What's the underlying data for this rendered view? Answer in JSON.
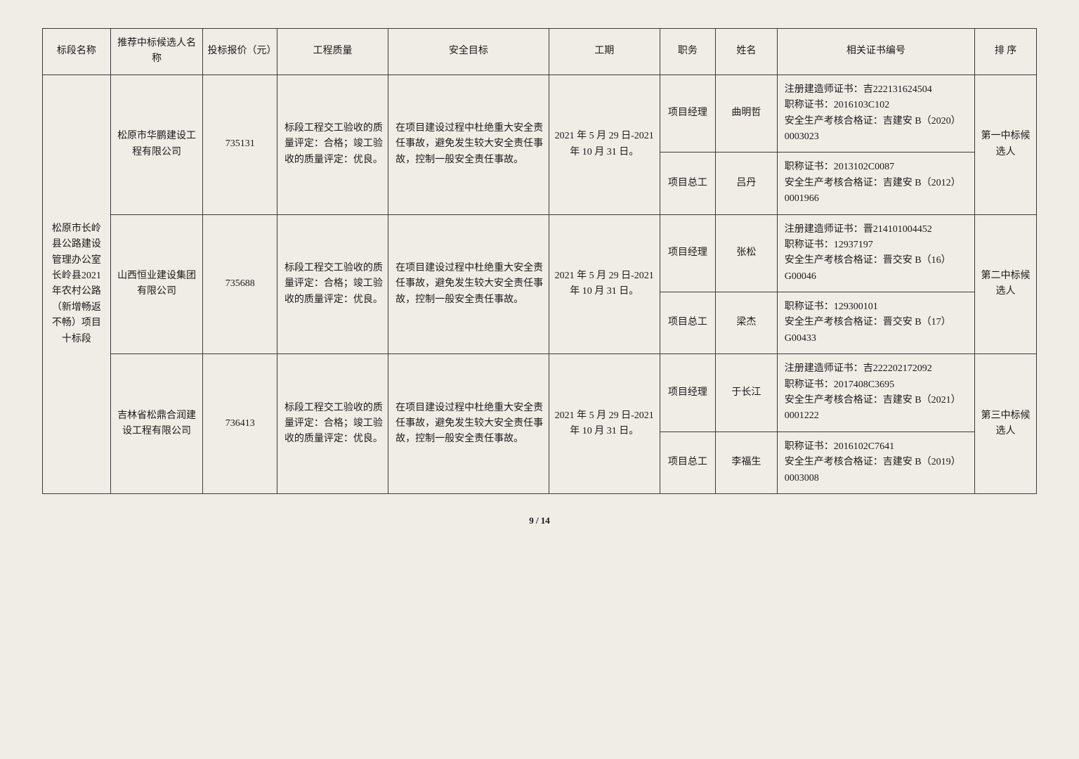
{
  "headers": {
    "section": "标段名称",
    "candidate": "推荐中标候选人名称",
    "price": "投标报价（元）",
    "quality": "工程质量",
    "safety": "安全目标",
    "period": "工期",
    "role": "职务",
    "name": "姓名",
    "cert": "相关证书编号",
    "rank": "排 序"
  },
  "section_name": "松原市长岭县公路建设管理办公室长岭县2021年农村公路（新增畅返不畅）项目十标段",
  "candidates": [
    {
      "company": "松原市华鹏建设工程有限公司",
      "price": "735131",
      "quality": "标段工程交工验收的质量评定：合格；竣工验收的质量评定：优良。",
      "safety": "在项目建设过程中杜绝重大安全责任事故，避免发生较大安全责任事故，控制一般安全责任事故。",
      "period": "2021 年 5 月 29 日-2021 年 10 月 31 日。",
      "persons": [
        {
          "role": "项目经理",
          "name": "曲明哲",
          "cert": "注册建造师证书：吉222131624504\n职称证书：2016103C102\n安全生产考核合格证：吉建安 B（2020）0003023"
        },
        {
          "role": "项目总工",
          "name": "吕丹",
          "cert": "职称证书：2013102C0087\n安全生产考核合格证：吉建安 B（2012）0001966"
        }
      ],
      "rank": "第一中标候选人"
    },
    {
      "company": "山西恒业建设集团有限公司",
      "price": "735688",
      "quality": "标段工程交工验收的质量评定：合格；竣工验收的质量评定：优良。",
      "safety": "在项目建设过程中杜绝重大安全责任事故，避免发生较大安全责任事故，控制一般安全责任事故。",
      "period": "2021 年 5 月 29 日-2021 年 10 月 31 日。",
      "persons": [
        {
          "role": "项目经理",
          "name": "张松",
          "cert": "注册建造师证书：晋214101004452\n职称证书：12937197\n安全生产考核合格证：晋交安 B（16）G00046"
        },
        {
          "role": "项目总工",
          "name": "梁杰",
          "cert": "职称证书：129300101\n安全生产考核合格证：晋交安 B（17）G00433"
        }
      ],
      "rank": "第二中标候选人"
    },
    {
      "company": "吉林省松鼎合润建设工程有限公司",
      "price": "736413",
      "quality": "标段工程交工验收的质量评定：合格；竣工验收的质量评定：优良。",
      "safety": "在项目建设过程中杜绝重大安全责任事故，避免发生较大安全责任事故，控制一般安全责任事故。",
      "period": "2021 年 5 月 29 日-2021 年 10 月 31 日。",
      "persons": [
        {
          "role": "项目经理",
          "name": "于长江",
          "cert": "注册建造师证书：吉222202172092\n职称证书：2017408C3695\n安全生产考核合格证：吉建安 B（2021）0001222"
        },
        {
          "role": "项目总工",
          "name": "李福生",
          "cert": "职称证书：2016102C7641\n安全生产考核合格证：吉建安 B（2019）0003008"
        }
      ],
      "rank": "第三中标候选人"
    }
  ],
  "page": "9 / 14"
}
